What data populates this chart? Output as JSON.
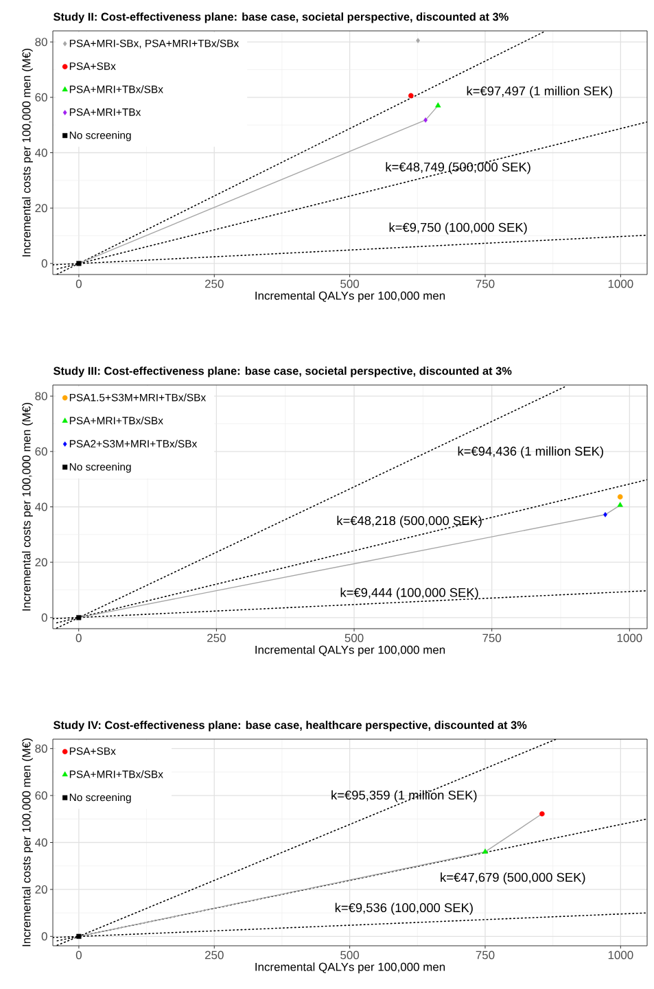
{
  "chart_data": [
    {
      "type": "scatter",
      "title": "Study II: Cost-effectiveness plane: base case, societal perspective, discounted at 3%",
      "xlabel": "Incremental QALYs per 100,000 men",
      "ylabel": "Incremental costs per 100,000 men (M€)",
      "xlim": [
        -48,
        1049
      ],
      "ylim": [
        -4,
        84
      ],
      "xticks": [
        0,
        250,
        500,
        750,
        1000
      ],
      "yticks": [
        0,
        20,
        40,
        60,
        80
      ],
      "grid": true,
      "legend": "top left",
      "series": [
        {
          "type": "line",
          "line_style": "dotted",
          "color": "#000000",
          "x": [
            -40,
            860
          ],
          "values": [
            -3.9,
            83.8
          ]
        },
        {
          "type": "line",
          "line_style": "dotted",
          "color": "#000000",
          "x": [
            -40,
            1049
          ],
          "values": [
            -2,
            51.1
          ]
        },
        {
          "type": "line",
          "line_style": "dotted",
          "color": "#000000",
          "x": [
            -48,
            1049
          ],
          "values": [
            -0.5,
            10.2
          ]
        },
        {
          "type": "line",
          "line_style": "solid",
          "color": "#a6a6a6",
          "x": [
            0,
            640,
            663
          ],
          "values": [
            0,
            51.8,
            57
          ]
        },
        {
          "name": "PSA+MRI-SBx, PSA+MRI+TBx/SBx",
          "color": "#a6a6a6",
          "marker": "diamond",
          "x": [
            626
          ],
          "values": [
            80.5
          ]
        },
        {
          "name": "PSA+SBx",
          "color": "#ff0000",
          "marker": "circle",
          "x": [
            613
          ],
          "values": [
            60.6
          ]
        },
        {
          "name": "PSA+MRI+TBx/SBx",
          "color": "#00ee00",
          "marker": "triangle",
          "x": [
            663
          ],
          "values": [
            57
          ]
        },
        {
          "name": "PSA+MRI+TBx",
          "color": "#a020f0",
          "marker": "diamond",
          "x": [
            640
          ],
          "values": [
            51.8
          ]
        },
        {
          "name": "No screening",
          "color": "#000000",
          "marker": "square",
          "x": [
            0
          ],
          "values": [
            0
          ]
        }
      ],
      "annotations": [
        "k=€97,497 (1 million SEK)",
        "k=€48,749 (500,000 SEK)",
        "k=€9,750 (100,000 SEK)"
      ]
    },
    {
      "type": "scatter",
      "title": "Study III: Cost-effectiveness plane: base case, societal perspective, discounted at 3%",
      "xlabel": "Incremental QALYs per 100,000 men",
      "ylabel": "Incremental costs per 100,000 men (M€)",
      "xlim": [
        -47,
        1032
      ],
      "ylim": [
        -4,
        84
      ],
      "xticks": [
        0,
        250,
        500,
        750,
        1000
      ],
      "yticks": [
        0,
        20,
        40,
        60,
        80
      ],
      "grid": true,
      "legend": "top left",
      "series": [
        {
          "type": "line",
          "line_style": "dotted",
          "color": "#000000",
          "x": [
            -40,
            885
          ],
          "values": [
            -3.8,
            83.6
          ]
        },
        {
          "type": "line",
          "line_style": "dotted",
          "color": "#000000",
          "x": [
            -40,
            1032
          ],
          "values": [
            -1.9,
            49.8
          ]
        },
        {
          "type": "line",
          "line_style": "dotted",
          "color": "#000000",
          "x": [
            -47,
            1032
          ],
          "values": [
            -0.4,
            9.7
          ]
        },
        {
          "type": "line",
          "line_style": "solid",
          "color": "#a6a6a6",
          "x": [
            0,
            956,
            983
          ],
          "values": [
            0,
            37.2,
            40.6
          ]
        },
        {
          "name": "PSA1.5+S3M+MRI+TBx/SBx",
          "color": "#ffa500",
          "marker": "circle",
          "x": [
            983
          ],
          "values": [
            43.6
          ]
        },
        {
          "name": "PSA+MRI+TBx/SBx",
          "color": "#00ee00",
          "marker": "triangle",
          "x": [
            983
          ],
          "values": [
            40.6
          ]
        },
        {
          "name": "PSA2+S3M+MRI+TBx/SBx",
          "color": "#0000ff",
          "marker": "diamond",
          "x": [
            956
          ],
          "values": [
            37.2
          ]
        },
        {
          "name": "No screening",
          "color": "#000000",
          "marker": "square",
          "x": [
            0
          ],
          "values": [
            0
          ]
        }
      ],
      "annotations": [
        "k=€94,436 (1 million SEK)",
        "k=€48,218 (500,000 SEK)",
        "k=€9,444 (100,000 SEK)"
      ]
    },
    {
      "type": "scatter",
      "title": "Study IV: Cost-effectiveness plane: base case, healthcare perspective, discounted at 3%",
      "xlabel": "Incremental QALYs per 100,000 men",
      "ylabel": "Incremental costs per 100,000 men (M€)",
      "xlim": [
        -48,
        1049
      ],
      "ylim": [
        -4,
        84
      ],
      "xticks": [
        0,
        250,
        500,
        750,
        1000
      ],
      "yticks": [
        0,
        20,
        40,
        60,
        80
      ],
      "grid": true,
      "legend": "top left",
      "series": [
        {
          "type": "line",
          "line_style": "dotted",
          "color": "#000000",
          "x": [
            -40,
            880
          ],
          "values": [
            -3.8,
            83.9
          ]
        },
        {
          "type": "line",
          "line_style": "dotted",
          "color": "#000000",
          "x": [
            -40,
            1049
          ],
          "values": [
            -1.9,
            50
          ]
        },
        {
          "type": "line",
          "line_style": "dotted",
          "color": "#000000",
          "x": [
            -48,
            1049
          ],
          "values": [
            -0.5,
            10
          ]
        },
        {
          "type": "line",
          "line_style": "solid",
          "color": "#a6a6a6",
          "x": [
            0,
            750,
            855
          ],
          "values": [
            0,
            36,
            52.2
          ]
        },
        {
          "name": "PSA+SBx",
          "color": "#ff0000",
          "marker": "circle",
          "x": [
            855
          ],
          "values": [
            52.2
          ]
        },
        {
          "name": "PSA+MRI+TBx/SBx",
          "color": "#00ee00",
          "marker": "triangle",
          "x": [
            750
          ],
          "values": [
            36
          ]
        },
        {
          "name": "No screening",
          "color": "#000000",
          "marker": "square",
          "x": [
            0
          ],
          "values": [
            0
          ]
        }
      ],
      "annotations": [
        "k=€95,359 (1 million SEK)",
        "k=€47,679 (500,000 SEK)",
        "k=€9,536 (100,000 SEK)"
      ]
    }
  ]
}
